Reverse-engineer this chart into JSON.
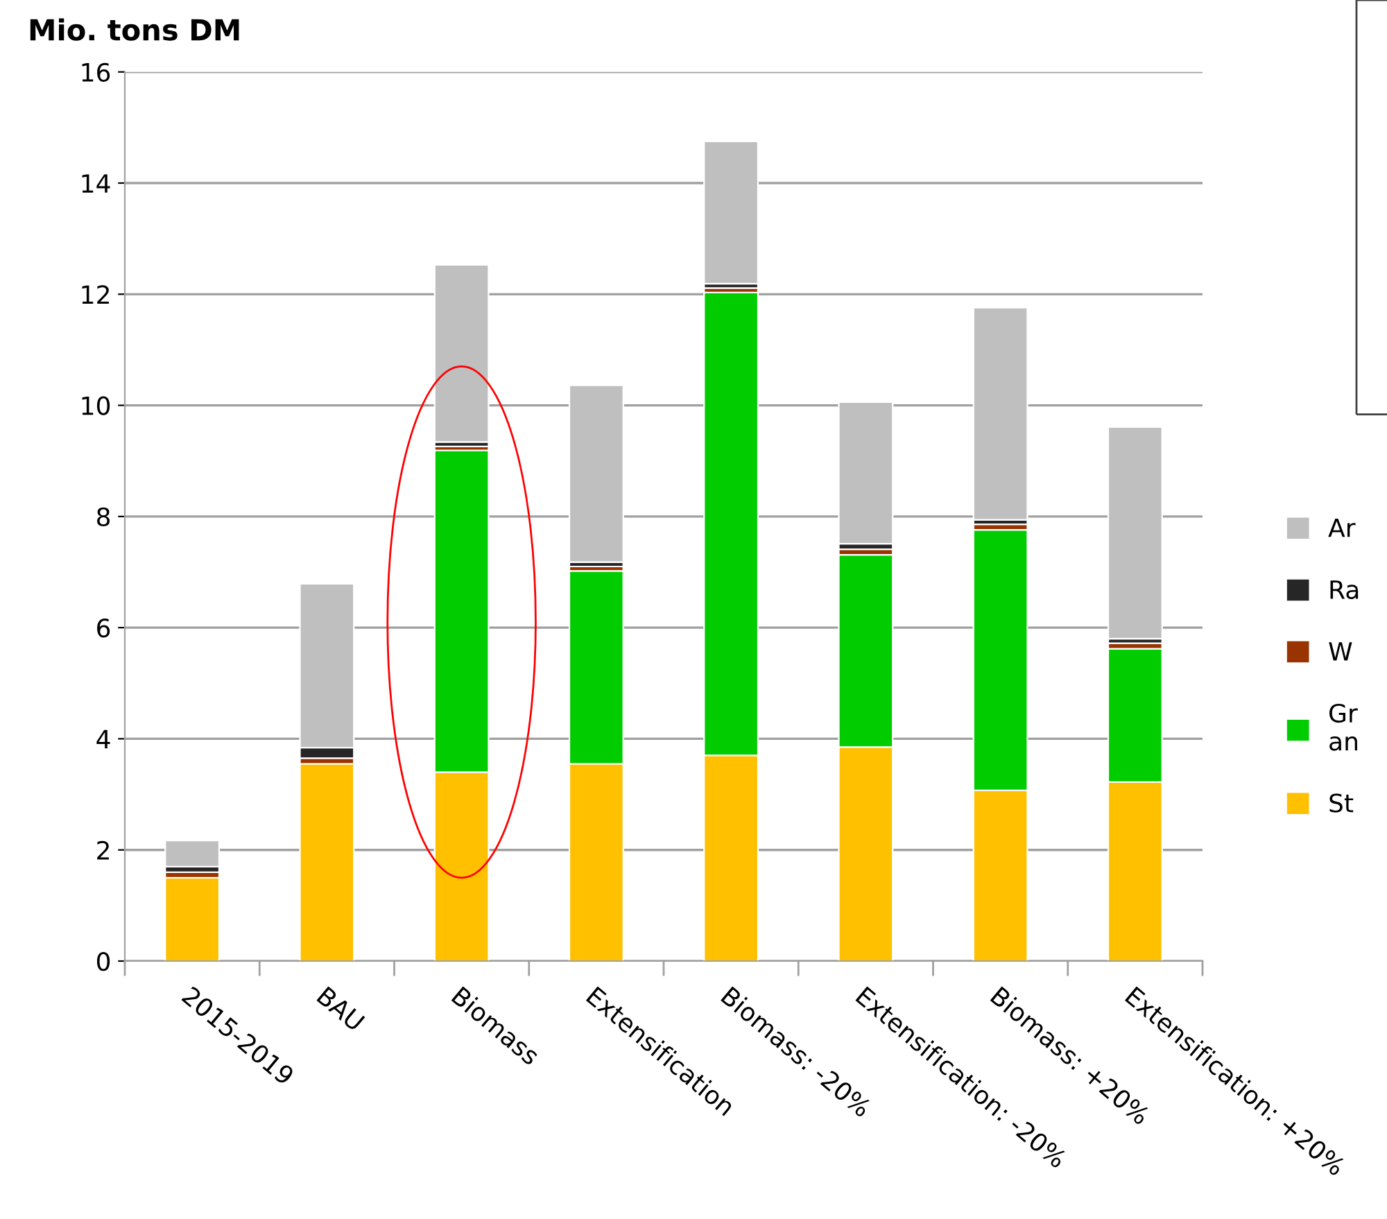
{
  "chart_data": {
    "type": "bar",
    "stacked": true,
    "ylabel": "Mio. tons DM",
    "categories": [
      "2015-2019",
      "BAU",
      "Biomass",
      "Extensification",
      "Biomass: -20%",
      "Extensification: -20%",
      "Biomass: +20%",
      "Extensification: +20%"
    ],
    "series": [
      {
        "name": "St",
        "color": "#ffc000",
        "values": [
          1.5,
          3.55,
          3.4,
          3.55,
          3.7,
          3.85,
          3.07,
          3.22
        ]
      },
      {
        "name": "Gr\nan",
        "color": "#00cc00",
        "values": [
          0,
          0,
          5.79,
          3.47,
          8.33,
          3.46,
          4.69,
          2.4
        ]
      },
      {
        "name": "W",
        "color": "#993300",
        "values": [
          0.1,
          0.1,
          0.07,
          0.08,
          0.08,
          0.1,
          0.1,
          0.1
        ]
      },
      {
        "name": "Ra",
        "color": "#262626",
        "values": [
          0.1,
          0.19,
          0.08,
          0.08,
          0.08,
          0.1,
          0.08,
          0.08
        ]
      },
      {
        "name": "Ar",
        "color": "#bfbfbf",
        "values": [
          0.47,
          2.95,
          3.19,
          3.18,
          2.56,
          2.55,
          3.82,
          3.81
        ]
      }
    ],
    "ylim": [
      0,
      16
    ],
    "yticks": [
      0,
      2,
      4,
      6,
      8,
      10,
      12,
      14,
      16
    ],
    "grid": "y",
    "legend": "right"
  }
}
